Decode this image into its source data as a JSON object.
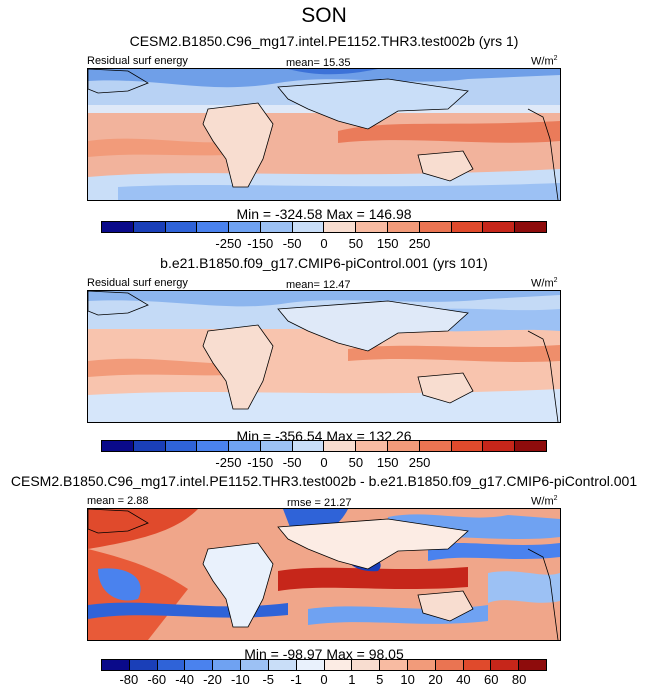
{
  "title": "SON",
  "units_base": "W/m",
  "units_exp": "2",
  "colors_main": [
    "#0a0a8a",
    "#1a3fb8",
    "#2f63d8",
    "#4a82ee",
    "#6fa2f2",
    "#9cc1f4",
    "#c9def8",
    "#f8ddd0",
    "#f8bba2",
    "#f29b7a",
    "#ea7452",
    "#e04a2c",
    "#c6261a",
    "#8e0c0c"
  ],
  "colors_diff": [
    "#0a0a8a",
    "#1a3fb8",
    "#2f63d8",
    "#4a82ee",
    "#6fa2f2",
    "#9cc1f4",
    "#c9def8",
    "#e9f1fc",
    "#fcece4",
    "#f8ddd0",
    "#f8bba2",
    "#f29b7a",
    "#ea7452",
    "#e04a2c",
    "#c6261a",
    "#8e0c0c"
  ],
  "panels": [
    {
      "title": "CESM2.B1850.C96_mg17.intel.PE1152.THR3.test002b (yrs 1)",
      "left_label": "Residual surf energy",
      "stat_label": "mean=",
      "stat_value": "15.35",
      "minmax": "Min = -324.58 Max = 146.98"
    },
    {
      "title": "b.e21.B1850.f09_g17.CMIP6-piControl.001 (yrs 101)",
      "left_label": "Residual surf energy",
      "stat_label": "mean=",
      "stat_value": "12.47",
      "minmax": "Min = -356.54 Max = 132.26"
    },
    {
      "title": "CESM2.B1850.C96_mg17.intel.PE1152.THR3.test002b - b.e21.B1850.f09_g17.CMIP6-piControl.001",
      "left_label": "mean =",
      "left_value": "2.88",
      "stat_label": "rmse =",
      "stat_value": "21.27",
      "minmax": "Min = -98.97 Max =  98.05"
    }
  ],
  "chart_data": [
    {
      "type": "heatmap",
      "title": "CESM2.B1850.C96_mg17.intel.PE1152.THR3.test002b (yrs 1)",
      "variable": "Residual surf energy",
      "units": "W/m2",
      "mean": 15.35,
      "min": -324.58,
      "max": 146.98,
      "colorbar_ticks": [
        "-250",
        "-150",
        "-50",
        "0",
        "50",
        "150",
        "250"
      ]
    },
    {
      "type": "heatmap",
      "title": "b.e21.B1850.f09_g17.CMIP6-piControl.001 (yrs 101)",
      "variable": "Residual surf energy",
      "units": "W/m2",
      "mean": 12.47,
      "min": -356.54,
      "max": 132.26,
      "colorbar_ticks": [
        "-250",
        "-150",
        "-50",
        "0",
        "50",
        "150",
        "250"
      ]
    },
    {
      "type": "heatmap",
      "title": "CESM2.B1850.C96_mg17.intel.PE1152.THR3.test002b - b.e21.B1850.f09_g17.CMIP6-piControl.001",
      "units": "W/m2",
      "mean": 2.88,
      "rmse": 21.27,
      "min": -98.97,
      "max": 98.05,
      "colorbar_ticks": [
        "-80",
        "-60",
        "-40",
        "-20",
        "-10",
        "-5",
        "-1",
        "0",
        "1",
        "5",
        "10",
        "20",
        "40",
        "60",
        "80"
      ]
    }
  ]
}
